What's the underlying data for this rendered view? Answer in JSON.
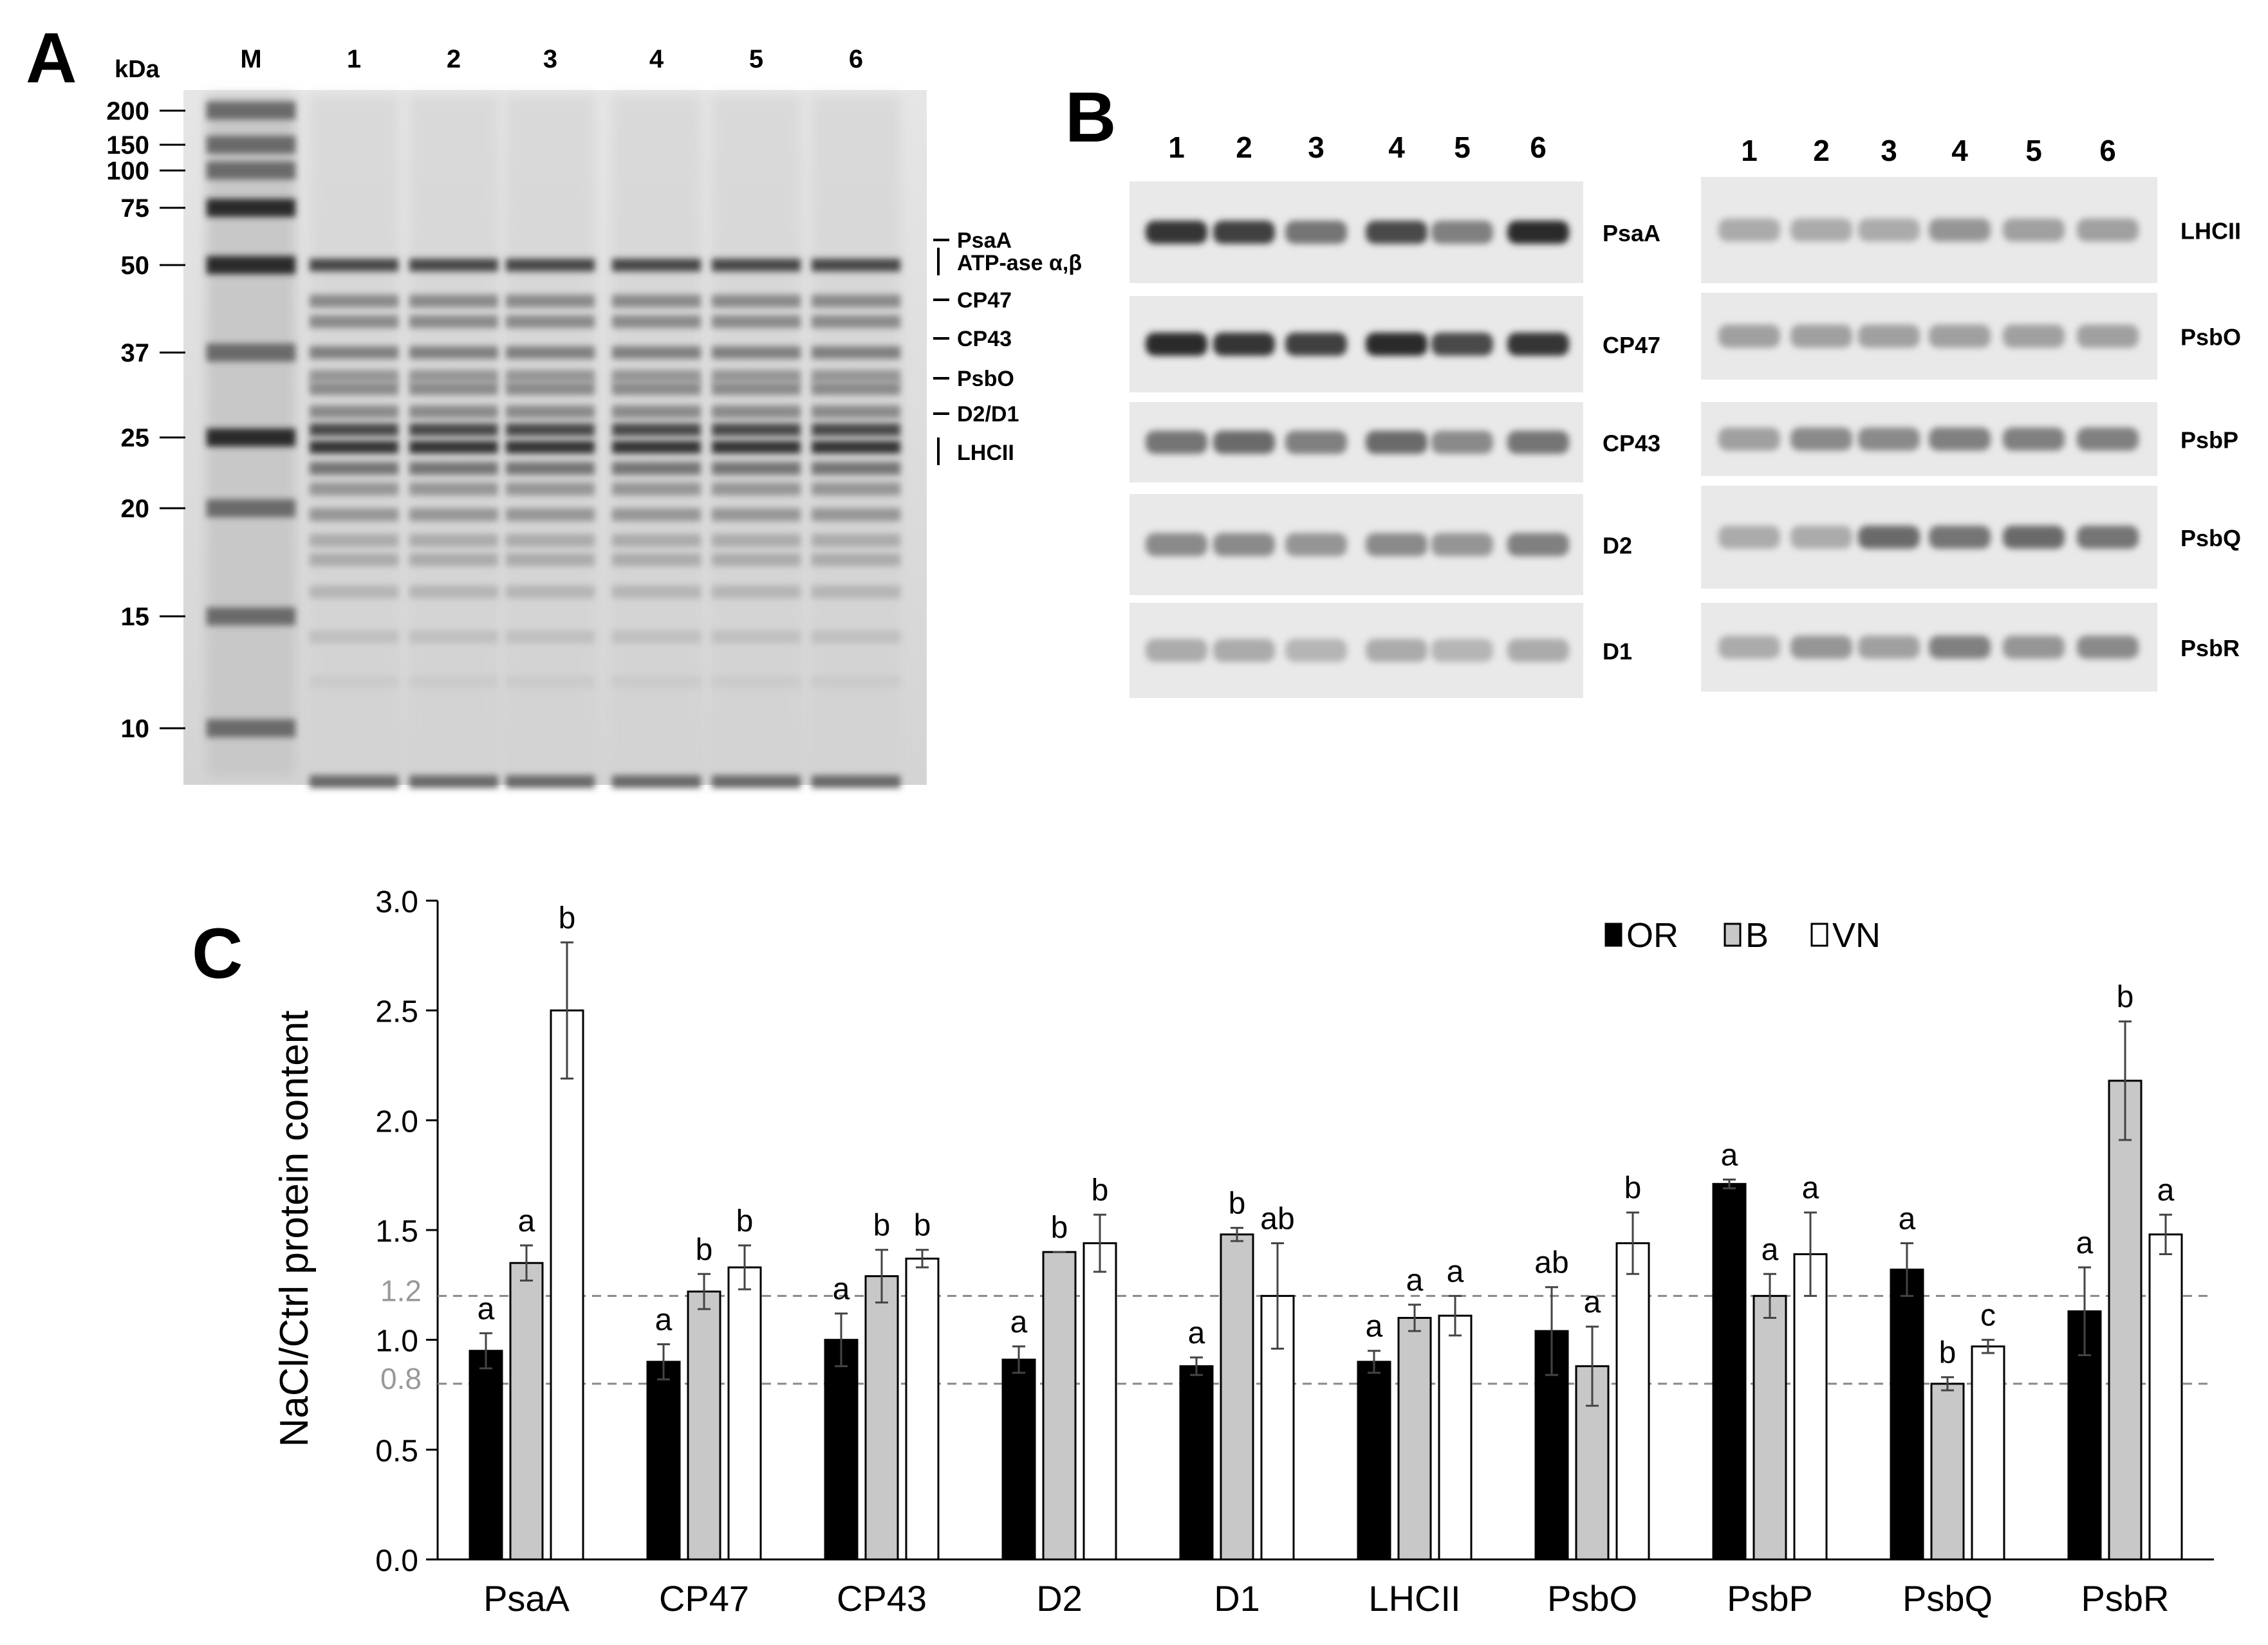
{
  "panels": {
    "a": {
      "label": "A",
      "unit": "kDa",
      "lanes": [
        "M",
        "1",
        "2",
        "3",
        "4",
        "5",
        "6"
      ],
      "markers": [
        "200",
        "150",
        "100",
        "75",
        "50",
        "37",
        "25",
        "20",
        "15",
        "10"
      ],
      "band_labels": [
        "PsaA",
        "ATP-ase α,β",
        "CP47",
        "CP43",
        "PsbO",
        "D2/D1",
        "LHCII"
      ]
    },
    "b": {
      "label": "B",
      "lanes": [
        "1",
        "2",
        "3",
        "4",
        "5",
        "6"
      ],
      "left_blots": [
        "PsaA",
        "CP47",
        "CP43",
        "D2",
        "D1"
      ],
      "right_blots": [
        "LHCII",
        "PsbO",
        "PsbP",
        "PsbQ",
        "PsbR"
      ],
      "left_intensity": [
        [
          0.85,
          0.8,
          0.55,
          0.75,
          0.5,
          0.9
        ],
        [
          0.9,
          0.85,
          0.8,
          0.9,
          0.75,
          0.85
        ],
        [
          0.55,
          0.6,
          0.5,
          0.6,
          0.45,
          0.55
        ],
        [
          0.45,
          0.45,
          0.4,
          0.45,
          0.4,
          0.5
        ],
        [
          0.3,
          0.3,
          0.25,
          0.3,
          0.25,
          0.3
        ]
      ],
      "right_intensity": [
        [
          0.3,
          0.3,
          0.3,
          0.4,
          0.35,
          0.35
        ],
        [
          0.35,
          0.35,
          0.35,
          0.35,
          0.35,
          0.35
        ],
        [
          0.35,
          0.45,
          0.45,
          0.5,
          0.5,
          0.5
        ],
        [
          0.3,
          0.3,
          0.6,
          0.55,
          0.6,
          0.55
        ],
        [
          0.3,
          0.4,
          0.35,
          0.5,
          0.4,
          0.45
        ]
      ]
    },
    "c": {
      "label": "C"
    }
  },
  "chart_data": {
    "type": "bar",
    "categories": [
      "PsaA",
      "CP47",
      "CP43",
      "D2",
      "D1",
      "LHCII",
      "PsbO",
      "PsbP",
      "PsbQ",
      "PsbR"
    ],
    "series": [
      {
        "name": "OR",
        "color": "#000000",
        "values": [
          0.95,
          0.9,
          1.0,
          0.91,
          0.88,
          0.9,
          1.04,
          1.71,
          1.32,
          1.13
        ],
        "errors": [
          0.08,
          0.08,
          0.12,
          0.06,
          0.04,
          0.05,
          0.2,
          0.02,
          0.12,
          0.2
        ],
        "letters": [
          "a",
          "a",
          "a",
          "a",
          "a",
          "a",
          "ab",
          "a",
          "a",
          "a"
        ]
      },
      {
        "name": "B",
        "color": "#c8c8c8",
        "values": [
          1.35,
          1.22,
          1.29,
          1.4,
          1.48,
          1.1,
          0.88,
          1.2,
          0.8,
          2.18
        ],
        "errors": [
          0.08,
          0.08,
          0.12,
          0.0,
          0.03,
          0.06,
          0.18,
          0.1,
          0.03,
          0.27
        ],
        "letters": [
          "a",
          "b",
          "b",
          "b",
          "b",
          "a",
          "a",
          "a",
          "b",
          "b"
        ]
      },
      {
        "name": "VN",
        "color": "#ffffff",
        "values": [
          2.5,
          1.33,
          1.37,
          1.44,
          1.2,
          1.11,
          1.44,
          1.39,
          0.97,
          1.48
        ],
        "errors": [
          0.31,
          0.1,
          0.04,
          0.13,
          0.24,
          0.09,
          0.14,
          0.19,
          0.03,
          0.09
        ],
        "letters": [
          "b",
          "b",
          "b",
          "b",
          "ab",
          "a",
          "b",
          "a",
          "c",
          "a"
        ]
      }
    ],
    "title": "",
    "xlabel": "",
    "ylabel": "NaCl/Ctrl protein content",
    "ylim": [
      0,
      3.0
    ],
    "yticks": [
      "0.0",
      "0.5",
      "1.0",
      "1.5",
      "2.0",
      "2.5",
      "3.0"
    ],
    "reference_lines": [
      {
        "value": 1.2,
        "label": "1.2"
      },
      {
        "value": 0.8,
        "label": "0.8"
      }
    ],
    "legend_position": "top-right",
    "grid": false
  }
}
